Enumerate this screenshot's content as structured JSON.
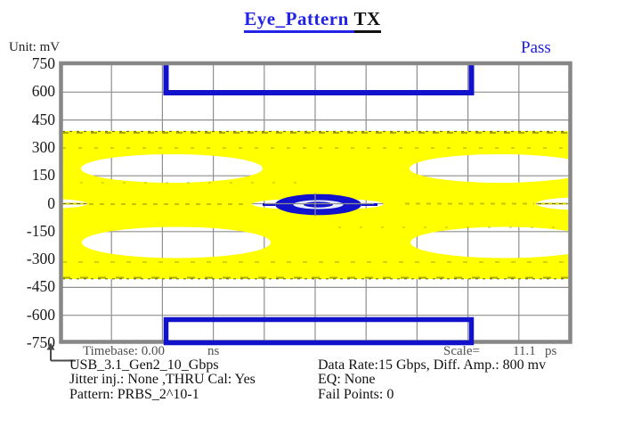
{
  "title": {
    "text_blue": "Eye_Pattern",
    "text_black": "TX"
  },
  "status_label": "Pass",
  "unit_label": "Unit: mV",
  "y_axis_ticks": [
    "750",
    "600",
    "450",
    "300",
    "150",
    "0",
    "-150",
    "-300",
    "-450",
    "-600",
    "-750"
  ],
  "footer": {
    "timebase_label": "Timebase: 0.00",
    "timebase_unit": "ns",
    "scale_label": "Scale=",
    "scale_value": "11.1",
    "scale_unit": "ps"
  },
  "info_left": [
    "USB_3.1_Gen2_10_Gbps",
    "Jitter inj.: None ,THRU Cal: Yes",
    "Pattern: PRBS_2^10-1"
  ],
  "info_right": [
    "Data Rate:15 Gbps, Diff. Amp.: 800 mv",
    "EQ: None",
    "Fail Points: 0"
  ],
  "colors": {
    "mask_blue": "#1212cc",
    "trace_yellow": "#ffff00",
    "pass_blue": "#1b1bdd",
    "title_blue": "#2323e6",
    "grid_gray": "#8f8f8f",
    "border_gray": "#878787",
    "footer_gray": "#4f4f4f"
  },
  "chart_data": {
    "type": "eye_diagram",
    "title": "Eye_Pattern TX",
    "result": "Pass",
    "unit": "mV",
    "ylabel": "mV",
    "ylim": [
      -750,
      750
    ],
    "y_ticks": [
      750,
      600,
      450,
      300,
      150,
      0,
      -150,
      -300,
      -450,
      -600,
      -750
    ],
    "grid": true,
    "x_divisions": 10,
    "timebase_ns": 0.0,
    "scale_ps_per_div": 11.1,
    "data_rate_gbps": 15,
    "diff_amplitude_mv": 800,
    "pattern": "PRBS_2^10-1",
    "eq": "None",
    "jitter_injection": "None",
    "thru_cal": "Yes",
    "standard": "USB_3.1_Gen2_10_Gbps",
    "fail_points": 0,
    "signal_envelope_mv": {
      "top": 390,
      "bottom": -405
    },
    "eye_crossings_x_div": [
      1.8,
      8.2
    ],
    "eye_center_x_div": 5.0,
    "eye_opening_at_center_mv": 60,
    "mask": {
      "top_keepout_mv": [
        600,
        750
      ],
      "top_keepout_x_div": [
        2.05,
        8.05
      ],
      "bottom_keepout_mv": [
        -750,
        -600
      ],
      "bottom_keepout_x_div": [
        2.05,
        8.05
      ],
      "center_ellipse": {
        "cx_div": 5.05,
        "cy_mv": 0,
        "rx_div": 0.85,
        "ry_mv": 55
      }
    }
  }
}
